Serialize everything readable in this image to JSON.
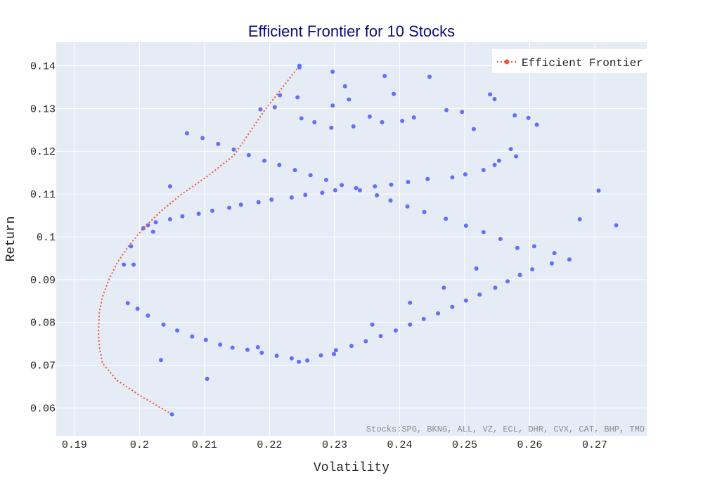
{
  "chart_data": {
    "type": "scatter",
    "title": "Efficient Frontier for 10 Stocks",
    "xlabel": "Volatility",
    "ylabel": "Return",
    "xlim": [
      0.1872,
      0.278
    ],
    "ylim": [
      0.0535,
      0.1455
    ],
    "xticks": [
      0.19,
      0.2,
      0.21,
      0.22,
      0.23,
      0.24,
      0.25,
      0.26,
      0.27
    ],
    "xtick_labels": [
      "0.19",
      "0.2",
      "0.21",
      "0.22",
      "0.23",
      "0.24",
      "0.25",
      "0.26",
      "0.27"
    ],
    "yticks": [
      0.06,
      0.07,
      0.08,
      0.09,
      0.1,
      0.11,
      0.12,
      0.13,
      0.14
    ],
    "ytick_labels": [
      "0.06",
      "0.07",
      "0.08",
      "0.09",
      "0.1",
      "0.11",
      "0.12",
      "0.13",
      "0.14"
    ],
    "grid": true,
    "legend": {
      "position": "top-right",
      "entries": [
        "Efficient Frontier"
      ]
    },
    "annotation": "Stocks:SPG, BKNG, ALL, VZ, ECL, DHR, CVX, CAT, BHP, TMO",
    "series": [
      {
        "name": "Efficient Frontier",
        "kind": "line",
        "color": "#ef553b",
        "x": [
          0.205,
          0.2005,
          0.1965,
          0.1943,
          0.1938,
          0.1937,
          0.1938,
          0.1943,
          0.1953,
          0.1966,
          0.1984,
          0.2006,
          0.2033,
          0.2065,
          0.2103,
          0.2145,
          0.2192,
          0.2246
        ],
        "y": [
          0.0585,
          0.0625,
          0.0665,
          0.0705,
          0.0745,
          0.078,
          0.082,
          0.086,
          0.09,
          0.094,
          0.098,
          0.102,
          0.106,
          0.11,
          0.114,
          0.119,
          0.1295,
          0.14
        ]
      },
      {
        "name": "",
        "kind": "markers",
        "color": "#636efa",
        "x": [
          0.2246,
          0.2297,
          0.2316,
          0.2377,
          0.2446,
          0.2297,
          0.2322,
          0.2391,
          0.2539,
          0.2546,
          0.2216,
          0.2243,
          0.2186,
          0.2208,
          0.2249,
          0.2269,
          0.2295,
          0.2329,
          0.2354,
          0.2373,
          0.2404,
          0.2422,
          0.2472,
          0.2496,
          0.2514,
          0.2577,
          0.2598,
          0.2611,
          0.2571,
          0.2579,
          0.2553,
          0.2546,
          0.2529,
          0.2501,
          0.2481,
          0.2443,
          0.2413,
          0.2387,
          0.2362,
          0.2333,
          0.2301,
          0.2281,
          0.2255,
          0.2234,
          0.2203,
          0.2183,
          0.2156,
          0.2138,
          0.2112,
          0.2091,
          0.2066,
          0.2047,
          0.2025,
          0.2013,
          0.2006,
          0.1987,
          0.1976,
          0.1982,
          0.1997,
          0.2013,
          0.2037,
          0.2058,
          0.2081,
          0.2102,
          0.2124,
          0.2143,
          0.2166,
          0.2188,
          0.2211,
          0.2234,
          0.2258,
          0.2279,
          0.2302,
          0.2326,
          0.2348,
          0.2371,
          0.2394,
          0.2416,
          0.2437,
          0.2459,
          0.2481,
          0.2502,
          0.2523,
          0.2547,
          0.2566,
          0.2585,
          0.2604,
          0.2634,
          0.2661,
          0.2638,
          0.2607,
          0.2555,
          0.2529,
          0.2502,
          0.2471,
          0.2438,
          0.2412,
          0.2386,
          0.2365,
          0.2339,
          0.2311,
          0.2287,
          0.2263,
          0.2239,
          0.2215,
          0.2192,
          0.2168,
          0.2145,
          0.2121,
          0.2097,
          0.2073,
          0.2047,
          0.2021,
          0.1991,
          0.2033,
          0.2104,
          0.2182,
          0.2245,
          0.2299,
          0.2358,
          0.2416,
          0.2468,
          0.2518,
          0.2581,
          0.2706,
          0.2733,
          0.2677
        ],
        "y": [
          0.1396,
          0.1386,
          0.1352,
          0.1376,
          0.1374,
          0.1307,
          0.1321,
          0.1334,
          0.1333,
          0.1322,
          0.1331,
          0.1326,
          0.1298,
          0.1303,
          0.1277,
          0.1268,
          0.1255,
          0.1258,
          0.1281,
          0.1268,
          0.1271,
          0.1279,
          0.1296,
          0.1292,
          0.1252,
          0.1284,
          0.1278,
          0.1262,
          0.1205,
          0.1188,
          0.1178,
          0.1168,
          0.1156,
          0.1146,
          0.1139,
          0.1135,
          0.1128,
          0.1122,
          0.1118,
          0.1114,
          0.1109,
          0.1103,
          0.1098,
          0.1092,
          0.1087,
          0.1081,
          0.1075,
          0.1068,
          0.1061,
          0.1054,
          0.1048,
          0.1041,
          0.1034,
          0.1027,
          0.102,
          0.0978,
          0.0935,
          0.0845,
          0.0832,
          0.0816,
          0.0795,
          0.0781,
          0.0767,
          0.0759,
          0.0748,
          0.0741,
          0.0736,
          0.0729,
          0.0722,
          0.0716,
          0.0711,
          0.0723,
          0.0735,
          0.0745,
          0.0756,
          0.0768,
          0.0781,
          0.0795,
          0.0808,
          0.0821,
          0.0836,
          0.0851,
          0.0865,
          0.0881,
          0.0896,
          0.0911,
          0.0924,
          0.0938,
          0.0947,
          0.0962,
          0.0978,
          0.0995,
          0.1011,
          0.1026,
          0.1042,
          0.1058,
          0.1071,
          0.1085,
          0.1097,
          0.1109,
          0.1121,
          0.1133,
          0.1144,
          0.1156,
          0.1168,
          0.1178,
          0.1191,
          0.1204,
          0.1217,
          0.1231,
          0.1242,
          0.1118,
          0.1012,
          0.0935,
          0.0712,
          0.0668,
          0.0742,
          0.0708,
          0.0726,
          0.0795,
          0.0846,
          0.0881,
          0.0926,
          0.0974,
          0.1108,
          0.1027,
          0.1041
        ]
      }
    ]
  },
  "colors": {
    "plot_background": "#e5ecf6",
    "grid": "#ffffff",
    "markers": "#636efa",
    "frontier": "#ef553b",
    "title": "#0d0d7a"
  }
}
